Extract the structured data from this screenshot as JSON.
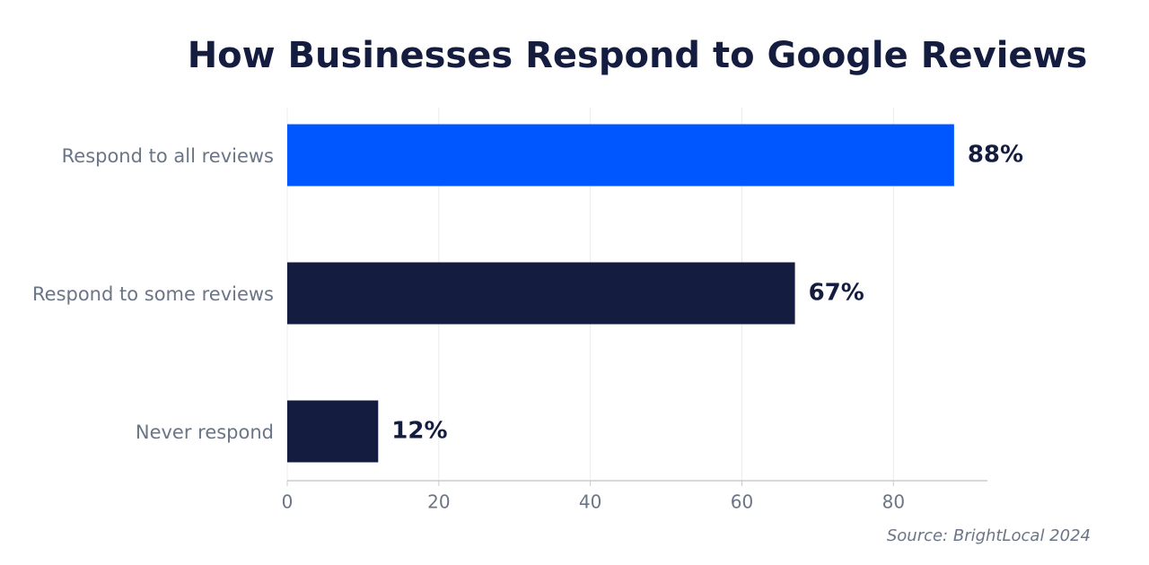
{
  "chart_data": {
    "type": "hbar",
    "title": "How Businesses Respond to Google Reviews",
    "categories": [
      "Respond to all reviews",
      "Respond to some reviews",
      "Never respond"
    ],
    "values": [
      88,
      67,
      12
    ],
    "value_labels": [
      "88%",
      "67%",
      "12%"
    ],
    "colors": [
      "#0057ff",
      "#141c3f",
      "#141c3f"
    ],
    "xlim": [
      0,
      92.4
    ],
    "xticks": [
      0,
      20,
      40,
      60,
      80
    ],
    "grid": true,
    "source": "Source: BrightLocal 2024"
  }
}
